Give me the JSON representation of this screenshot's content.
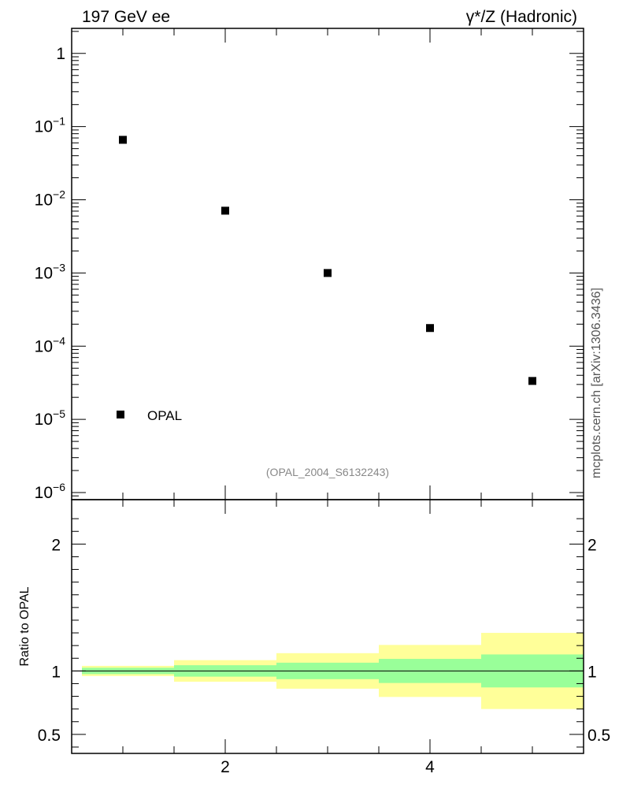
{
  "header": {
    "left_title": "197 GeV ee",
    "right_title": "γ*/Z (Hadronic)"
  },
  "side_label": "mcplots.cern.ch [arXiv:1306.3436]",
  "chart_data": [
    {
      "type": "scatter",
      "panel": "main",
      "yscale": "log",
      "xlim": [
        0.5,
        5.5
      ],
      "ylim": [
        8e-07,
        2.2
      ],
      "y_ticks": [
        {
          "value": 1,
          "base": "1",
          "exp": ""
        },
        {
          "value": 0.1,
          "base": "10",
          "exp": "−1"
        },
        {
          "value": 0.01,
          "base": "10",
          "exp": "−2"
        },
        {
          "value": 0.001,
          "base": "10",
          "exp": "−3"
        },
        {
          "value": 0.0001,
          "base": "10",
          "exp": "−4"
        },
        {
          "value": 1e-05,
          "base": "10",
          "exp": "−5"
        },
        {
          "value": 1e-06,
          "base": "10",
          "exp": "−6"
        }
      ],
      "series": [
        {
          "name": "OPAL",
          "color": "#000000",
          "marker": "square",
          "x": [
            1,
            2,
            3,
            4,
            5
          ],
          "y": [
            0.066,
            0.0071,
            0.001,
            0.000177,
            3.35e-05
          ]
        }
      ],
      "legend": {
        "position": "bottom-left",
        "entries": [
          "OPAL"
        ]
      },
      "annotation": "(OPAL_2004_S6132243)"
    },
    {
      "type": "area",
      "panel": "ratio",
      "ylabel": "Ratio to OPAL",
      "xlim": [
        0.5,
        5.5
      ],
      "ylim": [
        0.35,
        2.35
      ],
      "x_ticks": [
        2,
        4
      ],
      "y_ticks": [
        0.5,
        1,
        2
      ],
      "reference_line": 1,
      "bins": [
        {
          "x_low": 0.6,
          "x_high": 1.5,
          "stat_low": 0.975,
          "stat_high": 1.025,
          "total_low": 0.96,
          "total_high": 1.04
        },
        {
          "x_low": 1.5,
          "x_high": 2.5,
          "stat_low": 0.955,
          "stat_high": 1.045,
          "total_low": 0.915,
          "total_high": 1.085
        },
        {
          "x_low": 2.5,
          "x_high": 3.5,
          "stat_low": 0.935,
          "stat_high": 1.065,
          "total_low": 0.86,
          "total_high": 1.14
        },
        {
          "x_low": 3.5,
          "x_high": 4.5,
          "stat_low": 0.905,
          "stat_high": 1.095,
          "total_low": 0.795,
          "total_high": 1.205
        },
        {
          "x_low": 4.5,
          "x_high": 5.5,
          "stat_low": 0.87,
          "stat_high": 1.13,
          "total_low": 0.7,
          "total_high": 1.3
        }
      ],
      "colors": {
        "stat": "#99ff99",
        "total": "#ffff99",
        "line": "#000000"
      }
    }
  ]
}
